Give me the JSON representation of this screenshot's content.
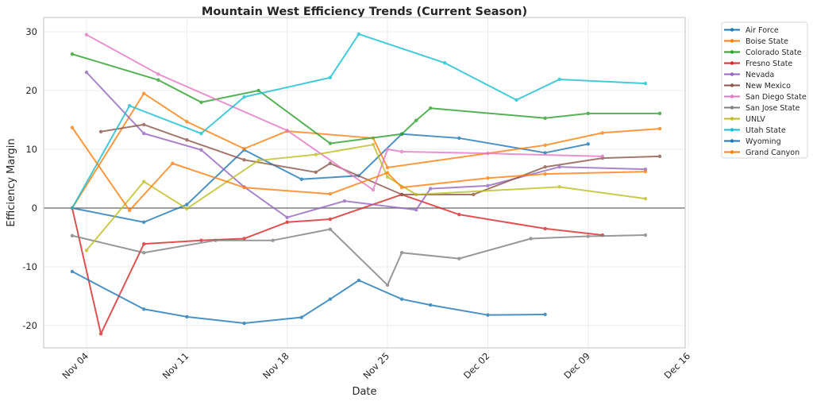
{
  "chart_data": {
    "type": "line",
    "title": "Mountain West Efficiency Trends (Current Season)",
    "xlabel": "Date",
    "ylabel": "Efficiency Margin",
    "ylim": [
      -24,
      31.5
    ],
    "xlim": [
      "Oct 31",
      "Dec 16"
    ],
    "yticks": [
      -20,
      -10,
      0,
      10,
      20,
      30
    ],
    "xticks": [
      "Nov 04",
      "Nov 11",
      "Nov 18",
      "Nov 25",
      "Dec 02",
      "Dec 09",
      "Dec 16"
    ],
    "grid": true,
    "zero_line": true,
    "legend_position": "outside-top-right",
    "series": [
      {
        "name": "Air Force",
        "color": "#1f77b4",
        "points": [
          [
            "Nov 03",
            0
          ],
          [
            "Nov 08",
            -2.4
          ],
          [
            "Nov 11",
            0.6
          ],
          [
            "Nov 15",
            9.9
          ],
          [
            "Nov 19",
            4.9
          ],
          [
            "Nov 23",
            5.5
          ],
          [
            "Nov 26",
            12.6
          ],
          [
            "Nov 30",
            11.9
          ],
          [
            "Dec 06",
            9.4
          ],
          [
            "Dec 09",
            10.9
          ]
        ]
      },
      {
        "name": "Boise State",
        "color": "#ff7f0e",
        "points": [
          [
            "Nov 03",
            0
          ],
          [
            "Nov 08",
            19.5
          ],
          [
            "Nov 11",
            14.7
          ],
          [
            "Nov 15",
            10.1
          ],
          [
            "Nov 18",
            13.1
          ],
          [
            "Nov 24",
            11.9
          ],
          [
            "Nov 25",
            6.9
          ],
          [
            "Dec 06",
            10.7
          ],
          [
            "Dec 10",
            12.8
          ],
          [
            "Dec 14",
            13.5
          ]
        ]
      },
      {
        "name": "Colorado State",
        "color": "#2ca02c",
        "points": [
          [
            "Nov 03",
            26.2
          ],
          [
            "Nov 09",
            21.8
          ],
          [
            "Nov 12",
            18.0
          ],
          [
            "Nov 16",
            20.0
          ],
          [
            "Nov 21",
            11.0
          ],
          [
            "Nov 26",
            12.6
          ],
          [
            "Nov 27",
            14.9
          ],
          [
            "Nov 28",
            17.0
          ],
          [
            "Dec 06",
            15.3
          ],
          [
            "Dec 09",
            16.1
          ],
          [
            "Dec 14",
            16.1
          ]
        ]
      },
      {
        "name": "Fresno State",
        "color": "#d62728",
        "points": [
          [
            "Nov 03",
            0
          ],
          [
            "Nov 05",
            -21.4
          ],
          [
            "Nov 08",
            -6.1
          ],
          [
            "Nov 12",
            -5.5
          ],
          [
            "Nov 15",
            -5.2
          ],
          [
            "Nov 18",
            -2.4
          ],
          [
            "Nov 21",
            -1.9
          ],
          [
            "Nov 26",
            2.3
          ],
          [
            "Nov 30",
            -1.1
          ],
          [
            "Dec 06",
            -3.5
          ],
          [
            "Dec 10",
            -4.6
          ]
        ]
      },
      {
        "name": "Nevada",
        "color": "#9467bd",
        "points": [
          [
            "Nov 04",
            23.1
          ],
          [
            "Nov 08",
            12.7
          ],
          [
            "Nov 12",
            9.9
          ],
          [
            "Nov 15",
            3.6
          ],
          [
            "Nov 18",
            -1.6
          ],
          [
            "Nov 22",
            1.2
          ],
          [
            "Nov 27",
            -0.3
          ],
          [
            "Nov 28",
            3.3
          ],
          [
            "Dec 02",
            3.8
          ],
          [
            "Dec 07",
            7.0
          ],
          [
            "Dec 13",
            6.6
          ]
        ]
      },
      {
        "name": "New Mexico",
        "color": "#8c564b",
        "points": [
          [
            "Nov 05",
            13.0
          ],
          [
            "Nov 08",
            14.2
          ],
          [
            "Nov 11",
            11.6
          ],
          [
            "Nov 15",
            8.2
          ],
          [
            "Nov 20",
            6.1
          ],
          [
            "Nov 21",
            7.6
          ],
          [
            "Nov 26",
            2.3
          ],
          [
            "Dec 01",
            2.3
          ],
          [
            "Dec 06",
            7.0
          ],
          [
            "Dec 10",
            8.5
          ],
          [
            "Dec 14",
            8.8
          ]
        ]
      },
      {
        "name": "San Diego State",
        "color": "#e377c2",
        "points": [
          [
            "Nov 04",
            29.5
          ],
          [
            "Nov 09",
            22.8
          ],
          [
            "Nov 18",
            13.2
          ],
          [
            "Nov 24",
            3.1
          ],
          [
            "Nov 25",
            10.0
          ],
          [
            "Nov 26",
            9.6
          ],
          [
            "Dec 02",
            9.3
          ],
          [
            "Dec 10",
            8.8
          ]
        ]
      },
      {
        "name": "San Jose State",
        "color": "#7f7f7f",
        "points": [
          [
            "Nov 03",
            -4.7
          ],
          [
            "Nov 08",
            -7.6
          ],
          [
            "Nov 13",
            -5.5
          ],
          [
            "Nov 17",
            -5.5
          ],
          [
            "Nov 21",
            -3.6
          ],
          [
            "Nov 25",
            -13.1
          ],
          [
            "Nov 26",
            -7.6
          ],
          [
            "Nov 30",
            -8.6
          ],
          [
            "Dec 05",
            -5.2
          ],
          [
            "Dec 09",
            -4.8
          ],
          [
            "Dec 13",
            -4.6
          ]
        ]
      },
      {
        "name": "UNLV",
        "color": "#bcbd22",
        "points": [
          [
            "Nov 04",
            -7.2
          ],
          [
            "Nov 08",
            4.5
          ],
          [
            "Nov 11",
            -0.1
          ],
          [
            "Nov 16",
            8.1
          ],
          [
            "Nov 20",
            9.1
          ],
          [
            "Nov 24",
            10.8
          ],
          [
            "Nov 25",
            5.3
          ],
          [
            "Nov 27",
            2.3
          ],
          [
            "Dec 07",
            3.6
          ],
          [
            "Dec 13",
            1.6
          ]
        ]
      },
      {
        "name": "Utah State",
        "color": "#17becf",
        "points": [
          [
            "Nov 03",
            0
          ],
          [
            "Nov 07",
            17.4
          ],
          [
            "Nov 12",
            12.7
          ],
          [
            "Nov 15",
            18.9
          ],
          [
            "Nov 21",
            22.2
          ],
          [
            "Nov 23",
            29.6
          ],
          [
            "Nov 29",
            24.7
          ],
          [
            "Dec 04",
            18.4
          ],
          [
            "Dec 07",
            21.9
          ],
          [
            "Dec 13",
            21.2
          ]
        ]
      },
      {
        "name": "Wyoming",
        "color": "#1f77b4",
        "points": [
          [
            "Nov 03",
            -10.8
          ],
          [
            "Nov 08",
            -17.2
          ],
          [
            "Nov 11",
            -18.5
          ],
          [
            "Nov 15",
            -19.6
          ],
          [
            "Nov 19",
            -18.6
          ],
          [
            "Nov 21",
            -15.5
          ],
          [
            "Nov 23",
            -12.3
          ],
          [
            "Nov 26",
            -15.5
          ],
          [
            "Nov 28",
            -16.5
          ],
          [
            "Dec 02",
            -18.2
          ],
          [
            "Dec 06",
            -18.1
          ]
        ]
      },
      {
        "name": "Grand Canyon",
        "color": "#ff7f0e",
        "points": [
          [
            "Nov 03",
            13.7
          ],
          [
            "Nov 07",
            -0.4
          ],
          [
            "Nov 10",
            7.6
          ],
          [
            "Nov 15",
            3.5
          ],
          [
            "Nov 21",
            2.4
          ],
          [
            "Nov 25",
            6.0
          ],
          [
            "Nov 26",
            3.5
          ],
          [
            "Dec 02",
            5.1
          ],
          [
            "Dec 06",
            5.8
          ],
          [
            "Dec 13",
            6.2
          ]
        ]
      }
    ]
  }
}
